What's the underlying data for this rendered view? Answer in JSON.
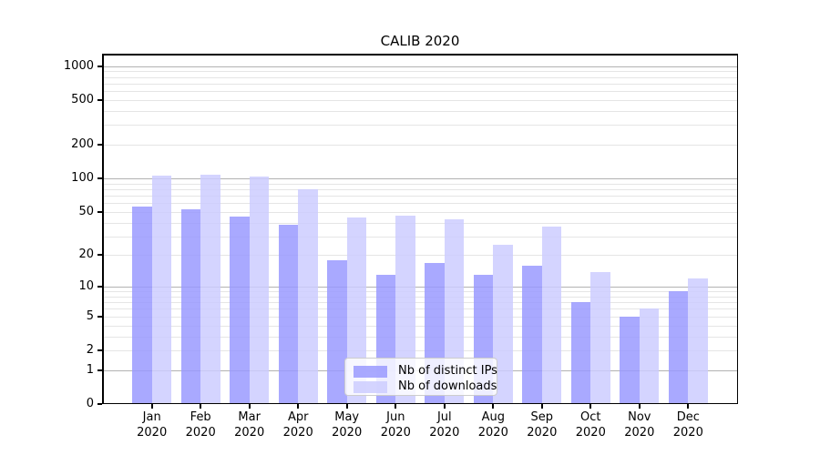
{
  "chart_data": {
    "type": "bar",
    "title": "CALIB 2020",
    "x": {
      "months": [
        "Jan",
        "Feb",
        "Mar",
        "Apr",
        "May",
        "Jun",
        "Jul",
        "Aug",
        "Sep",
        "Oct",
        "Nov",
        "Dec"
      ],
      "year": "2020"
    },
    "series": [
      {
        "name": "Nb of distinct IPs",
        "color": "#9999ff",
        "values": [
          56,
          53,
          45,
          38,
          18,
          13,
          17,
          13,
          16,
          7,
          5,
          9
        ]
      },
      {
        "name": "Nb of downloads",
        "color": "#ccccff",
        "values": [
          106,
          107,
          104,
          80,
          44,
          46,
          43,
          25,
          37,
          14,
          6,
          12
        ]
      }
    ],
    "y_axis": {
      "scale": "log10(1+v)",
      "ticks": [
        0,
        1,
        2,
        5,
        10,
        20,
        50,
        100,
        200,
        500,
        1000
      ],
      "major_gridlines": [
        1,
        10,
        100,
        1000
      ],
      "minor_gridline_mantissas": [
        2,
        3,
        4,
        5,
        6,
        7,
        8,
        9
      ],
      "ylim": [
        0,
        1300
      ]
    },
    "legend": {
      "entries": [
        "Nb of distinct IPs",
        "Nb of downloads"
      ],
      "location": "lower center"
    },
    "grid": "horizontal"
  },
  "colors": {
    "bar_alpha": 0.84,
    "major_grid": "#b2b2b2",
    "minor_grid": "#e5e5e5",
    "axis": "#000000",
    "text": "#000000",
    "legend_border": "#cccccc",
    "legend_background": "rgba(255,255,255,0.8)"
  }
}
